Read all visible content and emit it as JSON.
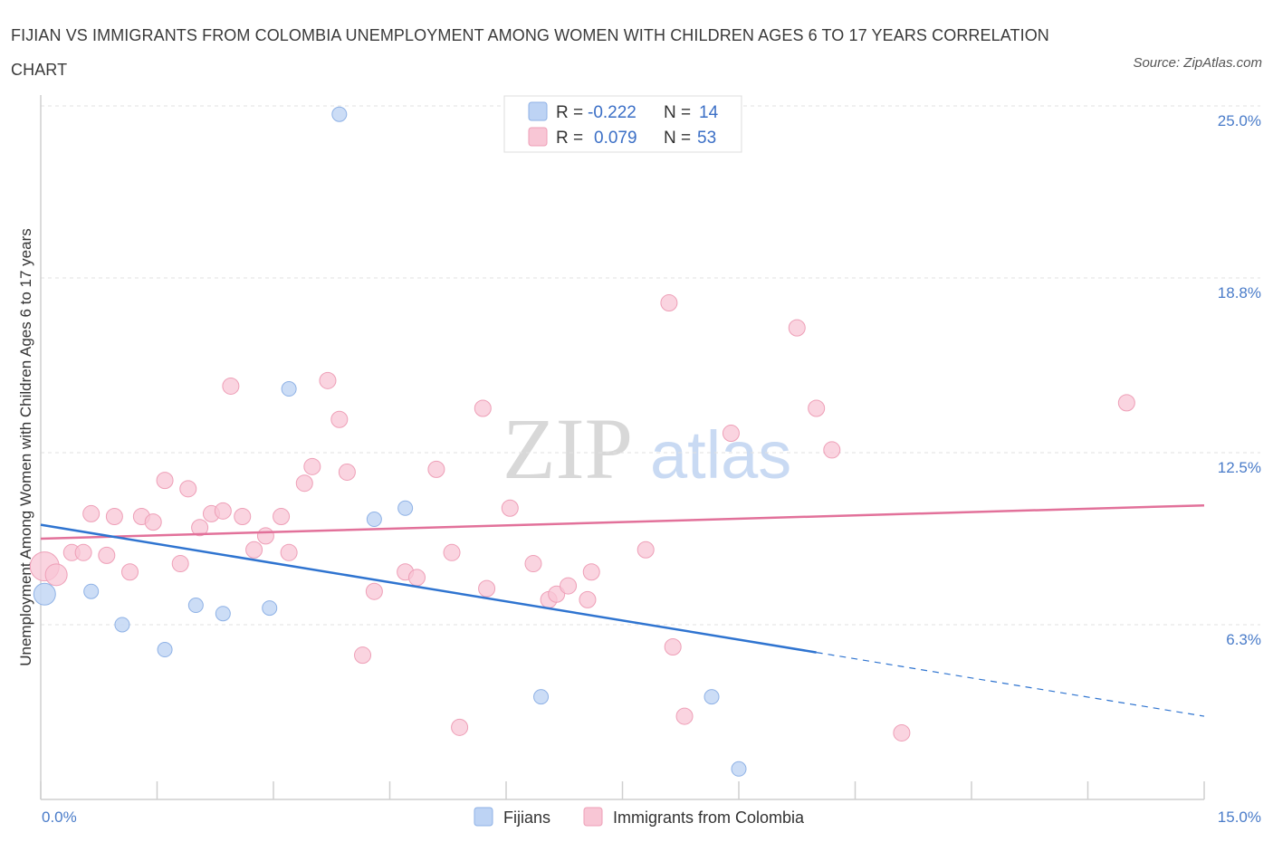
{
  "chart_data": {
    "type": "scatter",
    "title": "FIJIAN VS IMMIGRANTS FROM COLOMBIA UNEMPLOYMENT AMONG WOMEN WITH CHILDREN AGES 6 TO 17 YEARS CORRELATION CHART",
    "source": "Source: ZipAtlas.com",
    "ylabel": "Unemployment Among Women with Children Ages 6 to 17 years",
    "xlim": [
      0,
      15
    ],
    "ylim": [
      0,
      25
    ],
    "x_tick_labels": [
      "0.0%",
      "15.0%"
    ],
    "y_ticks": [
      6.3,
      12.5,
      18.8,
      25.0
    ],
    "y_tick_labels": [
      "6.3%",
      "12.5%",
      "18.8%",
      "25.0%"
    ],
    "watermark": {
      "zip": "ZIP",
      "atlas": "atlas"
    },
    "legend": {
      "r_label": "R =",
      "n_label": "N =",
      "rows": [
        {
          "r": "-0.222",
          "n": "14"
        },
        {
          "r": "0.079",
          "n": "53"
        }
      ]
    },
    "series": [
      {
        "name": "Fijians",
        "color": "#a9c6ef",
        "line_color": "#2f74d0",
        "trend": {
          "x0": 0,
          "y0": 9.9,
          "x1": 10.0,
          "y1": 5.3,
          "dash_to_x": 15,
          "dash_to_y": 3.0
        },
        "points": [
          {
            "x": 0.05,
            "y": 7.4,
            "s": 12
          },
          {
            "x": 3.85,
            "y": 24.7,
            "s": 8
          },
          {
            "x": 3.2,
            "y": 14.8,
            "s": 8
          },
          {
            "x": 4.7,
            "y": 10.5,
            "s": 8
          },
          {
            "x": 4.3,
            "y": 10.1,
            "s": 8
          },
          {
            "x": 0.65,
            "y": 7.5,
            "s": 8
          },
          {
            "x": 1.05,
            "y": 6.3,
            "s": 8
          },
          {
            "x": 2.0,
            "y": 7.0,
            "s": 8
          },
          {
            "x": 2.35,
            "y": 6.7,
            "s": 8
          },
          {
            "x": 2.95,
            "y": 6.9,
            "s": 8
          },
          {
            "x": 1.6,
            "y": 5.4,
            "s": 8
          },
          {
            "x": 6.45,
            "y": 3.7,
            "s": 8
          },
          {
            "x": 8.65,
            "y": 3.7,
            "s": 8
          },
          {
            "x": 9.0,
            "y": 1.1,
            "s": 8
          }
        ]
      },
      {
        "name": "Immigrants from Colombia",
        "color": "#f5b8cb",
        "line_color": "#e2719a",
        "trend": {
          "x0": 0,
          "y0": 9.4,
          "x1": 15,
          "y1": 10.6
        },
        "points": [
          {
            "x": 0.05,
            "y": 8.4,
            "s": 16
          },
          {
            "x": 0.2,
            "y": 8.1,
            "s": 12
          },
          {
            "x": 0.4,
            "y": 8.9,
            "s": 9
          },
          {
            "x": 0.55,
            "y": 8.9,
            "s": 9
          },
          {
            "x": 0.65,
            "y": 10.3,
            "s": 9
          },
          {
            "x": 0.85,
            "y": 8.8,
            "s": 9
          },
          {
            "x": 0.95,
            "y": 10.2,
            "s": 9
          },
          {
            "x": 1.15,
            "y": 8.2,
            "s": 9
          },
          {
            "x": 1.3,
            "y": 10.2,
            "s": 9
          },
          {
            "x": 1.45,
            "y": 10.0,
            "s": 9
          },
          {
            "x": 1.6,
            "y": 11.5,
            "s": 9
          },
          {
            "x": 1.8,
            "y": 8.5,
            "s": 9
          },
          {
            "x": 1.9,
            "y": 11.2,
            "s": 9
          },
          {
            "x": 2.05,
            "y": 9.8,
            "s": 9
          },
          {
            "x": 2.2,
            "y": 10.3,
            "s": 9
          },
          {
            "x": 2.35,
            "y": 10.4,
            "s": 9
          },
          {
            "x": 2.45,
            "y": 14.9,
            "s": 9
          },
          {
            "x": 2.6,
            "y": 10.2,
            "s": 9
          },
          {
            "x": 2.75,
            "y": 9.0,
            "s": 9
          },
          {
            "x": 2.9,
            "y": 9.5,
            "s": 9
          },
          {
            "x": 3.1,
            "y": 10.2,
            "s": 9
          },
          {
            "x": 3.2,
            "y": 8.9,
            "s": 9
          },
          {
            "x": 3.4,
            "y": 11.4,
            "s": 9
          },
          {
            "x": 3.5,
            "y": 12.0,
            "s": 9
          },
          {
            "x": 3.7,
            "y": 15.1,
            "s": 9
          },
          {
            "x": 3.85,
            "y": 13.7,
            "s": 9
          },
          {
            "x": 3.95,
            "y": 11.8,
            "s": 9
          },
          {
            "x": 4.15,
            "y": 5.2,
            "s": 9
          },
          {
            "x": 4.3,
            "y": 7.5,
            "s": 9
          },
          {
            "x": 4.7,
            "y": 8.2,
            "s": 9
          },
          {
            "x": 4.85,
            "y": 8.0,
            "s": 9
          },
          {
            "x": 5.1,
            "y": 11.9,
            "s": 9
          },
          {
            "x": 5.3,
            "y": 8.9,
            "s": 9
          },
          {
            "x": 5.4,
            "y": 2.6,
            "s": 9
          },
          {
            "x": 5.7,
            "y": 14.1,
            "s": 9
          },
          {
            "x": 5.75,
            "y": 7.6,
            "s": 9
          },
          {
            "x": 6.05,
            "y": 10.5,
            "s": 9
          },
          {
            "x": 6.35,
            "y": 8.5,
            "s": 9
          },
          {
            "x": 6.55,
            "y": 7.2,
            "s": 9
          },
          {
            "x": 6.65,
            "y": 7.4,
            "s": 9
          },
          {
            "x": 6.8,
            "y": 7.7,
            "s": 9
          },
          {
            "x": 7.05,
            "y": 7.2,
            "s": 9
          },
          {
            "x": 7.1,
            "y": 8.2,
            "s": 9
          },
          {
            "x": 7.8,
            "y": 9.0,
            "s": 9
          },
          {
            "x": 8.1,
            "y": 17.9,
            "s": 9
          },
          {
            "x": 8.15,
            "y": 5.5,
            "s": 9
          },
          {
            "x": 8.3,
            "y": 3.0,
            "s": 9
          },
          {
            "x": 8.9,
            "y": 13.2,
            "s": 9
          },
          {
            "x": 9.75,
            "y": 17.0,
            "s": 9
          },
          {
            "x": 10.0,
            "y": 14.1,
            "s": 9
          },
          {
            "x": 10.2,
            "y": 12.6,
            "s": 9
          },
          {
            "x": 11.1,
            "y": 2.4,
            "s": 9
          },
          {
            "x": 14.0,
            "y": 14.3,
            "s": 9
          }
        ]
      }
    ]
  }
}
